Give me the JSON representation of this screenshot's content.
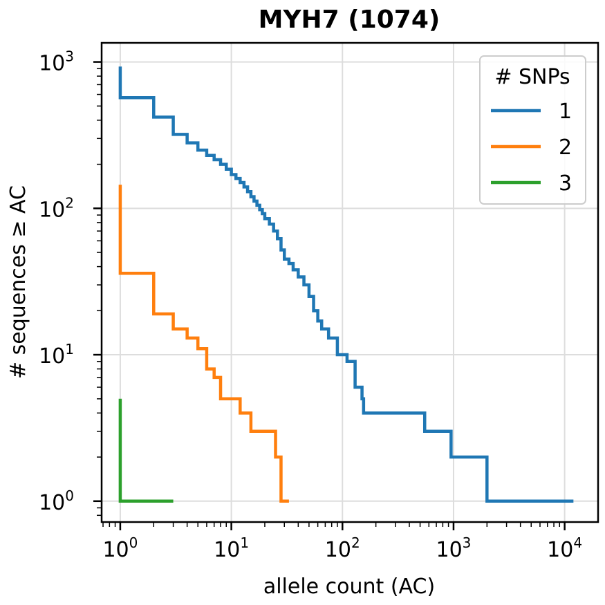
{
  "chart_data": {
    "type": "line",
    "title": "MYH7 (1074)",
    "xlabel": "allele count (AC)",
    "ylabel": "# sequences ≥ AC",
    "xscale": "log",
    "yscale": "log",
    "xlim": [
      0.68,
      20000
    ],
    "ylim": [
      0.72,
      1350
    ],
    "grid": true,
    "legend": {
      "title": "# SNPs",
      "placement": "top-right"
    },
    "xticks": [
      {
        "base": "10",
        "exp": "0"
      },
      {
        "base": "10",
        "exp": "1"
      },
      {
        "base": "10",
        "exp": "2"
      },
      {
        "base": "10",
        "exp": "3"
      },
      {
        "base": "10",
        "exp": "4"
      }
    ],
    "yticks": [
      {
        "base": "10",
        "exp": "0"
      },
      {
        "base": "10",
        "exp": "1"
      },
      {
        "base": "10",
        "exp": "2"
      },
      {
        "base": "10",
        "exp": "3"
      }
    ],
    "series": [
      {
        "name": "1",
        "color": "#1f77b4",
        "x": [
          1,
          1,
          2,
          3,
          4,
          5,
          6,
          7,
          8,
          9,
          10,
          11,
          12,
          13,
          14,
          15,
          16,
          17,
          18,
          19,
          20,
          22,
          24,
          26,
          28,
          30,
          33,
          36,
          40,
          45,
          50,
          55,
          60,
          65,
          75,
          90,
          110,
          130,
          150,
          155,
          550,
          950,
          2000,
          12000
        ],
        "y": [
          930,
          570,
          420,
          320,
          280,
          250,
          230,
          215,
          200,
          185,
          170,
          160,
          150,
          140,
          130,
          120,
          112,
          105,
          98,
          92,
          85,
          78,
          70,
          62,
          52,
          45,
          42,
          38,
          34,
          30,
          25,
          20,
          17,
          15,
          13,
          10,
          9,
          6,
          5,
          4,
          3,
          2,
          1,
          1
        ]
      },
      {
        "name": "2",
        "color": "#ff7f0e",
        "x": [
          1,
          1,
          2,
          3,
          4,
          5,
          6,
          7,
          8,
          12,
          15,
          25,
          28,
          33
        ],
        "y": [
          145,
          36,
          19,
          15,
          13,
          11,
          8,
          7,
          5,
          4,
          3,
          2,
          1,
          1
        ]
      },
      {
        "name": "3",
        "color": "#2ca02c",
        "x": [
          1,
          1,
          3
        ],
        "y": [
          5,
          1,
          1
        ]
      }
    ]
  }
}
